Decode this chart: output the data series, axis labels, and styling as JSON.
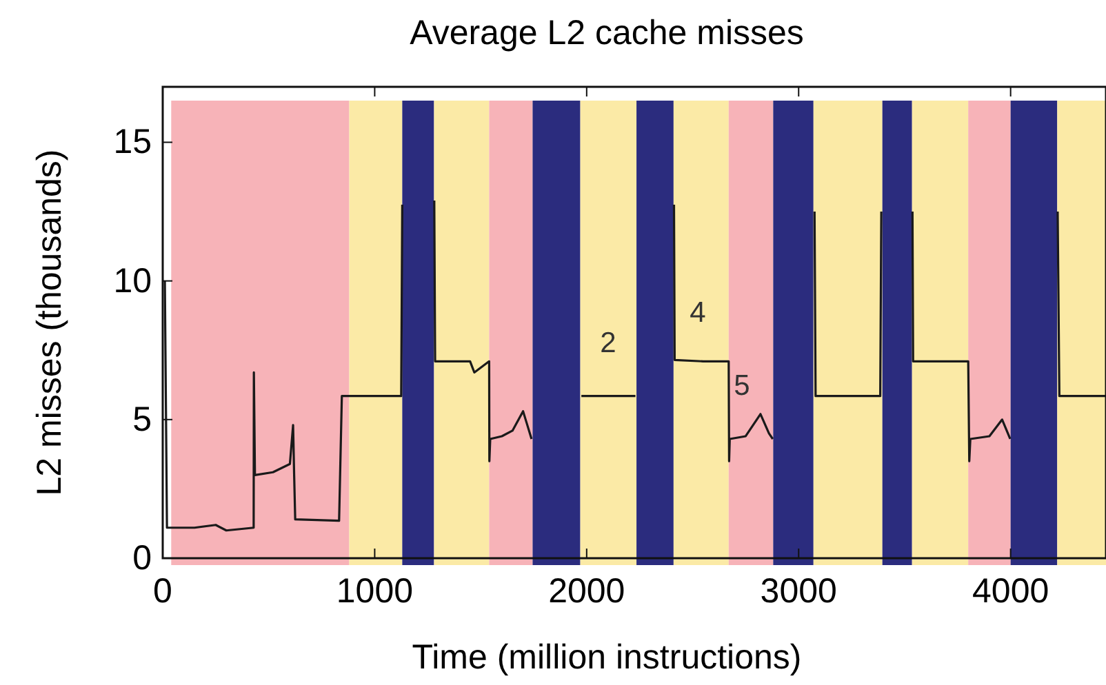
{
  "chart_data": {
    "type": "line",
    "title": "Average L2 cache misses",
    "xlabel": "Time (million instructions)",
    "ylabel": "L2 misses (thousands)",
    "xlim": [
      0,
      4450
    ],
    "ylim": [
      0,
      17
    ],
    "xticks": [
      0,
      1000,
      2000,
      3000,
      4000
    ],
    "yticks": [
      0,
      5,
      10,
      15
    ],
    "grid": false,
    "marker": "none",
    "line_style": "solid",
    "series": [
      {
        "color": "#1a1a1a",
        "x": [
          10,
          20,
          40,
          150,
          250,
          300,
          429,
          430,
          435,
          520,
          600,
          615,
          620,
          625,
          832,
          845,
          1000,
          1125,
          1130,
          1200,
          1281,
          1285,
          1450,
          1470,
          1540,
          1541,
          1545,
          1600,
          1650,
          1700,
          1740,
          1850,
          1975,
          2100,
          2230,
          2320,
          2412,
          2415,
          2550,
          2670,
          2672,
          2675,
          2750,
          2820,
          2860,
          2878,
          2970,
          3075,
          3080,
          3200,
          3385,
          3390,
          3460,
          3537,
          3540,
          3700,
          3800,
          3805,
          3810,
          3900,
          3960,
          3998,
          4100,
          4222,
          4230,
          4350,
          4450
        ],
        "values": [
          10,
          1.1,
          1.1,
          1.1,
          1.2,
          1.0,
          1.1,
          6.7,
          3.0,
          3.1,
          3.4,
          4.8,
          3.0,
          1.4,
          1.35,
          5.85,
          5.85,
          5.85,
          12.75,
          null,
          12.9,
          7.1,
          7.1,
          6.7,
          7.1,
          3.5,
          4.3,
          4.4,
          4.6,
          5.3,
          4.3,
          null,
          5.85,
          5.85,
          5.85,
          null,
          12.75,
          7.15,
          7.1,
          7.1,
          3.5,
          4.3,
          4.4,
          5.2,
          4.5,
          4.3,
          null,
          12.5,
          5.85,
          5.85,
          5.85,
          12.5,
          null,
          12.5,
          7.1,
          7.1,
          7.1,
          3.5,
          4.3,
          4.4,
          5.0,
          4.3,
          null,
          12.5,
          5.85,
          5.85,
          5.85
        ]
      }
    ],
    "bands": [
      {
        "axis": "x",
        "from": 40,
        "to": 880,
        "color": "#f7b3b8"
      },
      {
        "axis": "x",
        "from": 880,
        "to": 1130,
        "color": "#fbeaa6"
      },
      {
        "axis": "x",
        "from": 1130,
        "to": 1280,
        "color": "#2b2c7e"
      },
      {
        "axis": "x",
        "from": 1280,
        "to": 1540,
        "color": "#fbeaa6"
      },
      {
        "axis": "x",
        "from": 1540,
        "to": 1745,
        "color": "#f7b3b8"
      },
      {
        "axis": "x",
        "from": 1745,
        "to": 1970,
        "color": "#2b2c7e"
      },
      {
        "axis": "x",
        "from": 1970,
        "to": 2235,
        "color": "#fbeaa6"
      },
      {
        "axis": "x",
        "from": 2235,
        "to": 2410,
        "color": "#2b2c7e"
      },
      {
        "axis": "x",
        "from": 2410,
        "to": 2670,
        "color": "#fbeaa6"
      },
      {
        "axis": "x",
        "from": 2670,
        "to": 2880,
        "color": "#f7b3b8"
      },
      {
        "axis": "x",
        "from": 2880,
        "to": 3070,
        "color": "#2b2c7e"
      },
      {
        "axis": "x",
        "from": 3070,
        "to": 3395,
        "color": "#fbeaa6"
      },
      {
        "axis": "x",
        "from": 3395,
        "to": 3535,
        "color": "#2b2c7e"
      },
      {
        "axis": "x",
        "from": 3535,
        "to": 3800,
        "color": "#fbeaa6"
      },
      {
        "axis": "x",
        "from": 3800,
        "to": 4000,
        "color": "#f7b3b8"
      },
      {
        "axis": "x",
        "from": 4000,
        "to": 4220,
        "color": "#2b2c7e"
      },
      {
        "axis": "x",
        "from": 4220,
        "to": 4450,
        "color": "#fbeaa6"
      }
    ],
    "annotations": [
      "2",
      "4",
      "5"
    ]
  }
}
